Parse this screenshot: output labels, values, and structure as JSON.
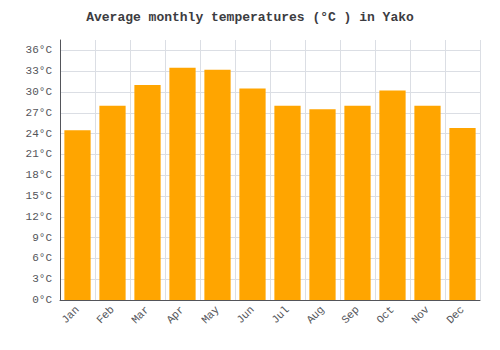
{
  "chart_data": {
    "type": "bar",
    "title": "Average monthly temperatures (°C ) in Yako",
    "categories": [
      "Jan",
      "Feb",
      "Mar",
      "Apr",
      "May",
      "Jun",
      "Jul",
      "Aug",
      "Sep",
      "Oct",
      "Nov",
      "Dec"
    ],
    "values": [
      24.5,
      28.0,
      31.0,
      33.5,
      33.2,
      30.5,
      28.0,
      27.5,
      28.0,
      30.2,
      28.0,
      24.8
    ],
    "color": "#FFA500",
    "ylim": [
      0,
      37.5
    ],
    "yticks": [
      {
        "value": 0,
        "label": "0°C"
      },
      {
        "value": 3,
        "label": "3°C"
      },
      {
        "value": 6,
        "label": "6°C"
      },
      {
        "value": 9,
        "label": "9°C"
      },
      {
        "value": 12,
        "label": "12°C"
      },
      {
        "value": 15,
        "label": "15°C"
      },
      {
        "value": 18,
        "label": "18°C"
      },
      {
        "value": 21,
        "label": "21°C"
      },
      {
        "value": 24,
        "label": "24°C"
      },
      {
        "value": 27,
        "label": "27°C"
      },
      {
        "value": 30,
        "label": "30°C"
      },
      {
        "value": 33,
        "label": "33°C"
      },
      {
        "value": 36,
        "label": "36°C"
      }
    ],
    "grid": true
  }
}
